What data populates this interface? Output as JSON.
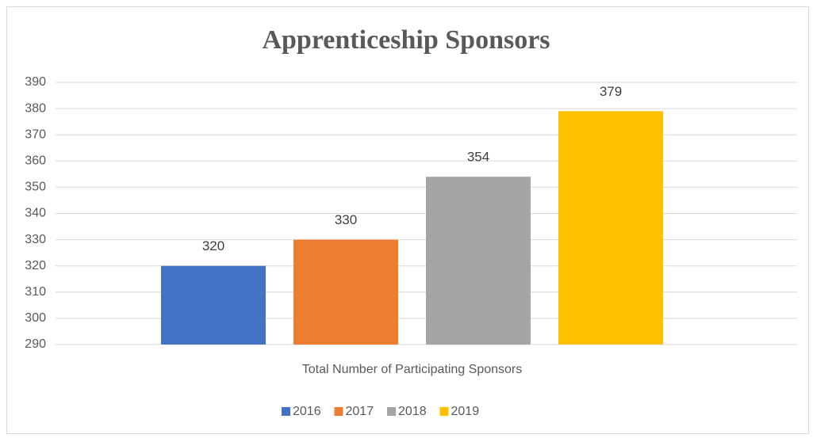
{
  "chart_data": {
    "type": "bar",
    "title": "Apprenticeship Sponsors",
    "categories": [
      "Total Number of Participating Sponsors"
    ],
    "series": [
      {
        "name": "2016",
        "color": "#4472c4",
        "values": [
          320
        ]
      },
      {
        "name": "2017",
        "color": "#ed7d31",
        "values": [
          330
        ]
      },
      {
        "name": "2018",
        "color": "#a5a5a5",
        "values": [
          354
        ]
      },
      {
        "name": "2019",
        "color": "#ffc000",
        "values": [
          379
        ]
      }
    ],
    "ylim": [
      290,
      390
    ],
    "yticks": [
      290,
      300,
      310,
      320,
      330,
      340,
      350,
      360,
      370,
      380,
      390
    ],
    "grid": true,
    "legend": "bottom"
  }
}
